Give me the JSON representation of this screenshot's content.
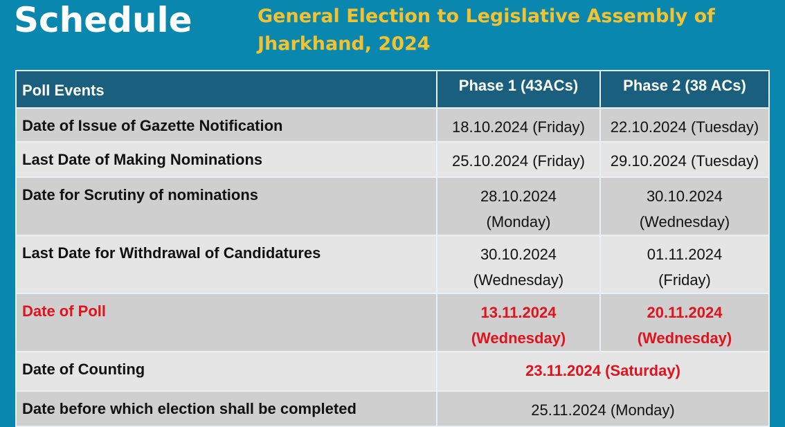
{
  "title": "Schedule",
  "subtitle": "General Election to Legislative Assembly of Jharkhand, 2024",
  "table": {
    "headers": [
      "Poll Events",
      "Phase 1 (43ACs)",
      "Phase 2 (38 ACs)"
    ],
    "rows": [
      {
        "event": "Date of Issue of Gazette Notification",
        "phase1": "18.10.2024 (Friday)",
        "phase2": "22.10.2024 (Tuesday)"
      },
      {
        "event": "Last Date of Making Nominations",
        "phase1": "25.10.2024 (Friday)",
        "phase2": "29.10.2024 (Tuesday)"
      },
      {
        "event": "Date for Scrutiny of nominations",
        "phase1": "28.10.2024 (Monday)",
        "phase2": "30.10.2024 (Wednesday)"
      },
      {
        "event": "Last Date for Withdrawal of Candidatures",
        "phase1": "30.10.2024 (Wednesday)",
        "phase2": "01.11.2024 (Friday)"
      },
      {
        "event": "Date of Poll",
        "phase1": "13.11.2024 (Wednesday)",
        "phase2": "20.11.2024 (Wednesday)"
      },
      {
        "event": "Date of Counting",
        "both": "23.11.2024 (Saturday)"
      },
      {
        "event": "Date before which election shall be completed",
        "both": "25.11.2024 (Monday)"
      }
    ]
  },
  "colors": {
    "background": "#0a87ae",
    "header": "#1a5f7e",
    "title_accent": "#f2c230",
    "highlight": "#e0121c"
  }
}
